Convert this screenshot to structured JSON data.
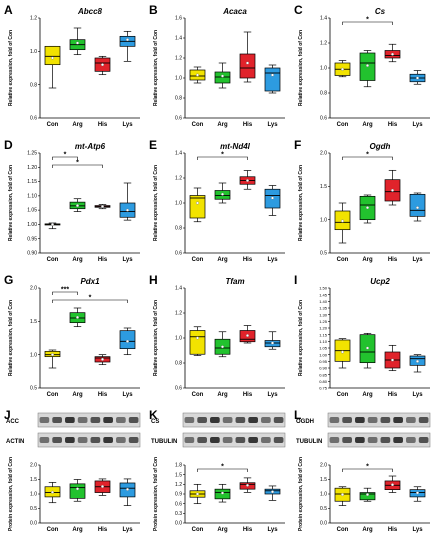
{
  "palette": {
    "Con": "#f2e300",
    "Arg": "#22c22e",
    "His": "#e0232b",
    "Lys": "#2d9be0",
    "axis": "#000000",
    "point": "#ffffff",
    "blot_band": "#1a1a1a",
    "blot_bg": "#d8d8d8"
  },
  "chart_data": [
    {
      "type": "box",
      "panel": "A",
      "title": "Abcc8",
      "ylabel": "Relative expression, fold of Con",
      "ylim": [
        0.6,
        1.2
      ],
      "yticks": [
        "0.6",
        "0.8",
        "1.0",
        "1.2"
      ],
      "categories": [
        "Con",
        "Arg",
        "His",
        "Lys"
      ],
      "boxes": [
        {
          "group": "Con",
          "min": 0.78,
          "q1": 0.92,
          "median": 0.97,
          "q3": 1.03,
          "max": 1.03,
          "mean": 0.96
        },
        {
          "group": "Arg",
          "min": 0.98,
          "q1": 1.01,
          "median": 1.04,
          "q3": 1.07,
          "max": 1.14,
          "mean": 1.05
        },
        {
          "group": "His",
          "min": 0.86,
          "q1": 0.88,
          "median": 0.93,
          "q3": 0.96,
          "max": 0.97,
          "mean": 0.92
        },
        {
          "group": "Lys",
          "min": 0.94,
          "q1": 1.03,
          "median": 1.06,
          "q3": 1.09,
          "max": 1.12,
          "mean": 1.07
        }
      ],
      "significance": []
    },
    {
      "type": "box",
      "panel": "B",
      "title": "Acaca",
      "ylabel": "Relative expression, fold of Con",
      "ylim": [
        0.6,
        1.6
      ],
      "yticks": [
        "0.6",
        "0.8",
        "1.0",
        "1.2",
        "1.4",
        "1.6"
      ],
      "categories": [
        "Con",
        "Arg",
        "His",
        "Lys"
      ],
      "boxes": [
        {
          "group": "Con",
          "min": 0.95,
          "q1": 0.98,
          "median": 1.02,
          "q3": 1.08,
          "max": 1.11,
          "mean": 1.03
        },
        {
          "group": "Arg",
          "min": 0.9,
          "q1": 0.95,
          "median": 1.01,
          "q3": 1.06,
          "max": 1.15,
          "mean": 1.02
        },
        {
          "group": "His",
          "min": 0.96,
          "q1": 1.0,
          "median": 1.1,
          "q3": 1.24,
          "max": 1.46,
          "mean": 1.15
        },
        {
          "group": "Lys",
          "min": 0.85,
          "q1": 0.87,
          "median": 1.05,
          "q3": 1.1,
          "max": 1.13,
          "mean": 1.03
        }
      ],
      "significance": []
    },
    {
      "type": "box",
      "panel": "C",
      "title": "Cs",
      "ylabel": "Relative expression, fold of Con",
      "ylim": [
        0.6,
        1.4
      ],
      "yticks": [
        "0.6",
        "0.8",
        "1.0",
        "1.2",
        "1.4"
      ],
      "categories": [
        "Con",
        "Arg",
        "His",
        "Lys"
      ],
      "boxes": [
        {
          "group": "Con",
          "min": 0.93,
          "q1": 0.94,
          "median": 0.99,
          "q3": 1.04,
          "max": 1.06,
          "mean": 0.99
        },
        {
          "group": "Arg",
          "min": 0.85,
          "q1": 0.9,
          "median": 1.04,
          "q3": 1.12,
          "max": 1.14,
          "mean": 1.02
        },
        {
          "group": "His",
          "min": 1.05,
          "q1": 1.08,
          "median": 1.1,
          "q3": 1.14,
          "max": 1.19,
          "mean": 1.11
        },
        {
          "group": "Lys",
          "min": 0.87,
          "q1": 0.89,
          "median": 0.92,
          "q3": 0.95,
          "max": 0.98,
          "mean": 0.92
        }
      ],
      "significance": [
        {
          "from": "Con",
          "to": "His",
          "label": "*"
        }
      ]
    },
    {
      "type": "box",
      "panel": "D",
      "title": "mt-Atp6",
      "ylabel": "Relative expression, fold of Con",
      "ylim": [
        0.9,
        1.25
      ],
      "yticks": [
        "0.90",
        "0.95",
        "1.00",
        "1.05",
        "1.10",
        "1.15",
        "1.20",
        "1.25"
      ],
      "categories": [
        "Con",
        "Arg",
        "His",
        "Lys"
      ],
      "boxes": [
        {
          "group": "Con",
          "min": 0.985,
          "q1": 0.998,
          "median": 1.0,
          "q3": 1.002,
          "max": 1.005,
          "mean": 1.0
        },
        {
          "group": "Arg",
          "min": 1.045,
          "q1": 1.055,
          "median": 1.065,
          "q3": 1.078,
          "max": 1.09,
          "mean": 1.066
        },
        {
          "group": "His",
          "min": 1.055,
          "q1": 1.06,
          "median": 1.063,
          "q3": 1.066,
          "max": 1.07,
          "mean": 1.063
        },
        {
          "group": "Lys",
          "min": 1.015,
          "q1": 1.025,
          "median": 1.045,
          "q3": 1.075,
          "max": 1.145,
          "mean": 1.05
        }
      ],
      "significance": [
        {
          "from": "Con",
          "to": "Arg",
          "label": "*"
        },
        {
          "from": "Con",
          "to": "His",
          "label": "*"
        }
      ]
    },
    {
      "type": "box",
      "panel": "E",
      "title": "mt-Nd4l",
      "ylabel": "Relative expression, fold of Con",
      "ylim": [
        0.6,
        1.4
      ],
      "yticks": [
        "0.6",
        "0.8",
        "1.0",
        "1.2",
        "1.4"
      ],
      "categories": [
        "Con",
        "Arg",
        "His",
        "Lys"
      ],
      "boxes": [
        {
          "group": "Con",
          "min": 0.85,
          "q1": 0.88,
          "median": 1.04,
          "q3": 1.06,
          "max": 1.12,
          "mean": 1.0
        },
        {
          "group": "Arg",
          "min": 1.0,
          "q1": 1.03,
          "median": 1.06,
          "q3": 1.1,
          "max": 1.16,
          "mean": 1.07
        },
        {
          "group": "His",
          "min": 1.11,
          "q1": 1.15,
          "median": 1.18,
          "q3": 1.21,
          "max": 1.26,
          "mean": 1.18
        },
        {
          "group": "Lys",
          "min": 0.9,
          "q1": 0.96,
          "median": 1.06,
          "q3": 1.11,
          "max": 1.14,
          "mean": 1.04
        }
      ],
      "significance": [
        {
          "from": "Con",
          "to": "His",
          "label": "*"
        }
      ]
    },
    {
      "type": "box",
      "panel": "F",
      "title": "Ogdh",
      "ylabel": "Relative expression, fold of Con",
      "ylim": [
        0.5,
        2.0
      ],
      "yticks": [
        "0.5",
        "1.0",
        "1.5",
        "2.0"
      ],
      "categories": [
        "Con",
        "Arg",
        "His",
        "Lys"
      ],
      "boxes": [
        {
          "group": "Con",
          "min": 0.65,
          "q1": 0.85,
          "median": 0.96,
          "q3": 1.13,
          "max": 1.25,
          "mean": 0.98
        },
        {
          "group": "Arg",
          "min": 0.95,
          "q1": 1.0,
          "median": 1.22,
          "q3": 1.35,
          "max": 1.37,
          "mean": 1.18
        },
        {
          "group": "His",
          "min": 1.22,
          "q1": 1.28,
          "median": 1.42,
          "q3": 1.6,
          "max": 1.74,
          "mean": 1.44
        },
        {
          "group": "Lys",
          "min": 0.98,
          "q1": 1.05,
          "median": 1.14,
          "q3": 1.38,
          "max": 1.4,
          "mean": 1.18
        }
      ],
      "significance": [
        {
          "from": "Con",
          "to": "His",
          "label": "*"
        }
      ]
    },
    {
      "type": "box",
      "panel": "G",
      "title": "Pdx1",
      "ylabel": "Relative expression, fold of Con",
      "ylim": [
        0.5,
        2.0
      ],
      "yticks": [
        "0.5",
        "1.0",
        "1.5",
        "2.0"
      ],
      "categories": [
        "Con",
        "Arg",
        "His",
        "Lys"
      ],
      "boxes": [
        {
          "group": "Con",
          "min": 0.8,
          "q1": 0.97,
          "median": 1.0,
          "q3": 1.05,
          "max": 1.07,
          "mean": 1.0
        },
        {
          "group": "Arg",
          "min": 1.42,
          "q1": 1.48,
          "median": 1.55,
          "q3": 1.63,
          "max": 1.7,
          "mean": 1.56
        },
        {
          "group": "His",
          "min": 0.85,
          "q1": 0.89,
          "median": 0.95,
          "q3": 0.97,
          "max": 1.0,
          "mean": 0.93
        },
        {
          "group": "Lys",
          "min": 1.0,
          "q1": 1.09,
          "median": 1.2,
          "q3": 1.36,
          "max": 1.4,
          "mean": 1.2
        }
      ],
      "significance": [
        {
          "from": "Con",
          "to": "Arg",
          "label": "***"
        },
        {
          "from": "Con",
          "to": "Lys",
          "label": "*"
        }
      ]
    },
    {
      "type": "box",
      "panel": "H",
      "title": "Tfam",
      "ylabel": "Relative expression, fold of Con",
      "ylim": [
        0.6,
        1.4
      ],
      "yticks": [
        "0.6",
        "0.8",
        "1.0",
        "1.2",
        "1.4"
      ],
      "categories": [
        "Con",
        "Arg",
        "His",
        "Lys"
      ],
      "boxes": [
        {
          "group": "Con",
          "min": 0.86,
          "q1": 0.87,
          "median": 1.01,
          "q3": 1.06,
          "max": 1.09,
          "mean": 1.0
        },
        {
          "group": "Arg",
          "min": 0.85,
          "q1": 0.87,
          "median": 0.92,
          "q3": 0.99,
          "max": 1.05,
          "mean": 0.93
        },
        {
          "group": "His",
          "min": 0.96,
          "q1": 0.97,
          "median": 0.99,
          "q3": 1.06,
          "max": 1.1,
          "mean": 1.02
        },
        {
          "group": "Lys",
          "min": 0.91,
          "q1": 0.93,
          "median": 0.96,
          "q3": 0.98,
          "max": 1.05,
          "mean": 0.96
        }
      ],
      "significance": []
    },
    {
      "type": "box",
      "panel": "I",
      "title": "Ucp2",
      "ylabel": "Relative expression, fold of Con",
      "ylim": [
        0.75,
        1.5
      ],
      "yticks": [
        "0.75",
        "0.80",
        "0.85",
        "0.90",
        "0.95",
        "1.00",
        "1.05",
        "1.10",
        "1.15",
        "1.20",
        "1.25",
        "1.30",
        "1.35",
        "1.40",
        "1.45",
        "1.50"
      ],
      "categories": [
        "Con",
        "Arg",
        "His",
        "Lys"
      ],
      "boxes": [
        {
          "group": "Con",
          "min": 0.9,
          "q1": 0.95,
          "median": 1.03,
          "q3": 1.11,
          "max": 1.12,
          "mean": 1.02
        },
        {
          "group": "Arg",
          "min": 0.9,
          "q1": 0.94,
          "median": 1.02,
          "q3": 1.15,
          "max": 1.16,
          "mean": 1.05
        },
        {
          "group": "His",
          "min": 0.88,
          "q1": 0.9,
          "median": 0.96,
          "q3": 1.02,
          "max": 1.07,
          "mean": 0.96
        },
        {
          "group": "Lys",
          "min": 0.87,
          "q1": 0.92,
          "median": 0.97,
          "q3": 0.99,
          "max": 1.0,
          "mean": 0.95
        }
      ],
      "significance": []
    },
    {
      "type": "box",
      "panel": "J",
      "ylabel": "Protein expression, fold of Con",
      "ylim": [
        0.0,
        2.0
      ],
      "yticks": [
        "0.0",
        "0.5",
        "1.0",
        "1.5",
        "2.0"
      ],
      "categories": [
        "Con",
        "Arg",
        "His",
        "Lys"
      ],
      "blot": {
        "target": "ACC",
        "loading": "ACTIN"
      },
      "boxes": [
        {
          "group": "Con",
          "min": 0.7,
          "q1": 0.9,
          "median": 1.05,
          "q3": 1.25,
          "max": 1.4,
          "mean": 1.06
        },
        {
          "group": "Arg",
          "min": 0.75,
          "q1": 0.85,
          "median": 1.22,
          "q3": 1.35,
          "max": 1.5,
          "mean": 1.18
        },
        {
          "group": "His",
          "min": 0.95,
          "q1": 1.05,
          "median": 1.25,
          "q3": 1.45,
          "max": 1.52,
          "mean": 1.26
        },
        {
          "group": "Lys",
          "min": 0.6,
          "q1": 0.9,
          "median": 1.2,
          "q3": 1.38,
          "max": 1.52,
          "mean": 1.16
        }
      ],
      "significance": []
    },
    {
      "type": "box",
      "panel": "K",
      "ylabel": "Protein expression, fold of Con",
      "ylim": [
        0.0,
        1.8
      ],
      "yticks": [
        "0.0",
        "0.3",
        "0.6",
        "0.9",
        "1.2",
        "1.5",
        "1.8"
      ],
      "categories": [
        "Con",
        "Arg",
        "His",
        "Lys"
      ],
      "blot": {
        "target": "CS",
        "loading": "TUBULIN"
      },
      "boxes": [
        {
          "group": "Con",
          "min": 0.6,
          "q1": 0.8,
          "median": 0.9,
          "q3": 1.0,
          "max": 1.2,
          "mean": 0.9
        },
        {
          "group": "Arg",
          "min": 0.65,
          "q1": 0.75,
          "median": 0.95,
          "q3": 1.05,
          "max": 1.2,
          "mean": 0.93
        },
        {
          "group": "His",
          "min": 0.95,
          "q1": 1.05,
          "median": 1.2,
          "q3": 1.25,
          "max": 1.4,
          "mean": 1.17
        },
        {
          "group": "Lys",
          "min": 0.7,
          "q1": 0.9,
          "median": 1.0,
          "q3": 1.05,
          "max": 1.15,
          "mean": 0.97
        }
      ],
      "significance": [
        {
          "from": "Con",
          "to": "His",
          "label": "*"
        }
      ]
    },
    {
      "type": "box",
      "panel": "L",
      "ylabel": "Protein expression, fold of Con",
      "ylim": [
        0.0,
        2.0
      ],
      "yticks": [
        "0.0",
        "0.5",
        "1.0",
        "1.5",
        "2.0"
      ],
      "categories": [
        "Con",
        "Arg",
        "His",
        "Lys"
      ],
      "blot": {
        "target": "OGDH",
        "loading": "TUBULIN"
      },
      "boxes": [
        {
          "group": "Con",
          "min": 0.6,
          "q1": 0.75,
          "median": 1.0,
          "q3": 1.2,
          "max": 1.25,
          "mean": 0.98
        },
        {
          "group": "Arg",
          "min": 0.75,
          "q1": 0.8,
          "median": 1.0,
          "q3": 1.05,
          "max": 1.2,
          "mean": 0.98
        },
        {
          "group": "His",
          "min": 1.05,
          "q1": 1.15,
          "median": 1.3,
          "q3": 1.45,
          "max": 1.62,
          "mean": 1.32
        },
        {
          "group": "Lys",
          "min": 0.75,
          "q1": 0.9,
          "median": 1.05,
          "q3": 1.15,
          "max": 1.25,
          "mean": 1.04
        }
      ],
      "significance": [
        {
          "from": "Con",
          "to": "His",
          "label": "*"
        }
      ]
    }
  ]
}
